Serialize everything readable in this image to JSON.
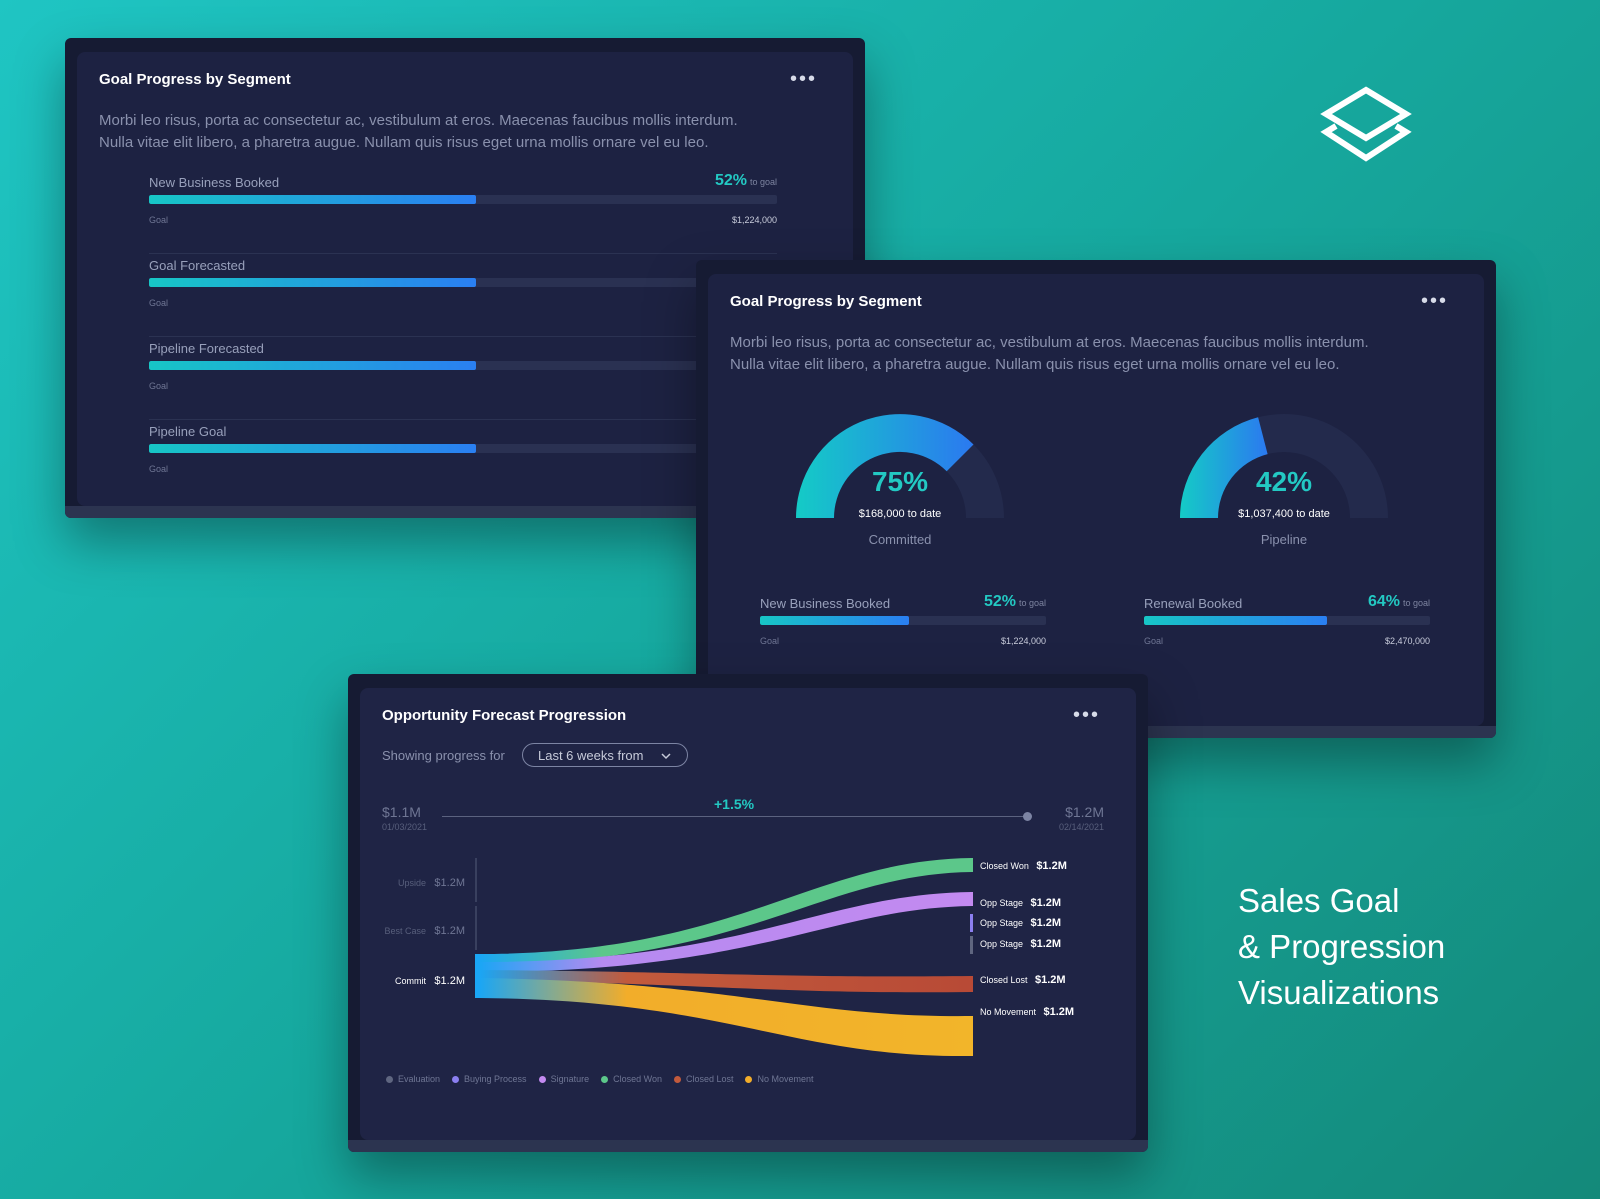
{
  "colors": {
    "accent": "#23c9c3",
    "bar_start": "#17c6c6",
    "bar_end": "#2a7ff2",
    "card_bg": "#1d2242"
  },
  "brand": {
    "logo_icon": "layered-diamond-icon",
    "title_lines": [
      "Sales Goal",
      "& Progression",
      "Visualizations"
    ]
  },
  "card1": {
    "title": "Goal Progress by Segment",
    "menu_icon": "more-dots-icon",
    "description_lines": [
      "Morbi leo risus, porta ac consectetur ac, vestibulum at eros. Maecenas faucibus mollis interdum.",
      "Nulla vitae elit libero, a pharetra augue. Nullam quis risus eget urna mollis ornare vel eu leo."
    ],
    "rows": [
      {
        "label": "New Business Booked",
        "percent_text": "52%",
        "percent": 52,
        "suffix": "to goal",
        "goal_label": "Goal",
        "amount": "$1,224,000"
      },
      {
        "label": "Goal Forecasted",
        "percent": 52,
        "goal_label": "Goal"
      },
      {
        "label": "Pipeline Forecasted",
        "percent": 52,
        "goal_label": "Goal"
      },
      {
        "label": "Pipeline Goal",
        "percent": 52,
        "goal_label": "Goal"
      }
    ]
  },
  "card2": {
    "title": "Goal Progress by Segment",
    "menu_icon": "more-dots-icon",
    "description_lines": [
      "Morbi leo risus, porta ac consectetur ac, vestibulum at eros. Maecenas faucibus mollis interdum.",
      "Nulla vitae elit libero, a pharetra augue. Nullam quis risus eget urna mollis ornare vel eu leo."
    ],
    "gauges": [
      {
        "percent_text": "75%",
        "percent": 75,
        "amount": "$168,000",
        "to_date": "to date",
        "name": "Committed"
      },
      {
        "percent_text": "42%",
        "percent": 42,
        "amount": "$1,037,400",
        "to_date": "to date",
        "name": "Pipeline"
      }
    ],
    "bars": [
      {
        "label": "New Business Booked",
        "percent_text": "52%",
        "percent": 52,
        "suffix": "to goal",
        "goal_label": "Goal",
        "amount": "$1,224,000"
      },
      {
        "label": "Renewal Booked",
        "percent_text": "64%",
        "percent": 64,
        "suffix": "to goal",
        "goal_label": "Goal",
        "amount": "$2,470,000"
      }
    ]
  },
  "card3": {
    "title": "Opportunity Forecast Progression",
    "menu_icon": "more-dots-icon",
    "showing_label": "Showing progress for",
    "dropdown_value": "Last 6 weeks from",
    "dropdown_icon": "chevron-down-icon",
    "timeline": {
      "start_value": "$1.1M",
      "start_date": "01/03/2021",
      "end_value": "$1.2M",
      "end_date": "02/14/2021",
      "change": "+1.5%"
    },
    "left_nodes": [
      {
        "label": "Upside",
        "value": "$1.2M"
      },
      {
        "label": "Best Case",
        "value": "$1.2M"
      },
      {
        "label": "Commit",
        "value": "$1.2M"
      }
    ],
    "right_nodes": [
      {
        "label": "Closed Won",
        "value": "$1.2M"
      },
      {
        "label": "Opp Stage",
        "value": "$1.2M"
      },
      {
        "label": "Opp Stage",
        "value": "$1.2M"
      },
      {
        "label": "Opp Stage",
        "value": "$1.2M"
      },
      {
        "label": "Closed Lost",
        "value": "$1.2M"
      },
      {
        "label": "No Movement",
        "value": "$1.2M"
      }
    ],
    "legend": [
      {
        "label": "Evaluation",
        "color": "#5f6680"
      },
      {
        "label": "Buying Process",
        "color": "#8b7ff0"
      },
      {
        "label": "Signature",
        "color": "#c38af0"
      },
      {
        "label": "Closed Won",
        "color": "#5cc78a"
      },
      {
        "label": "Closed Lost",
        "color": "#c25a3c"
      },
      {
        "label": "No Movement",
        "color": "#f2ad2a"
      }
    ]
  }
}
